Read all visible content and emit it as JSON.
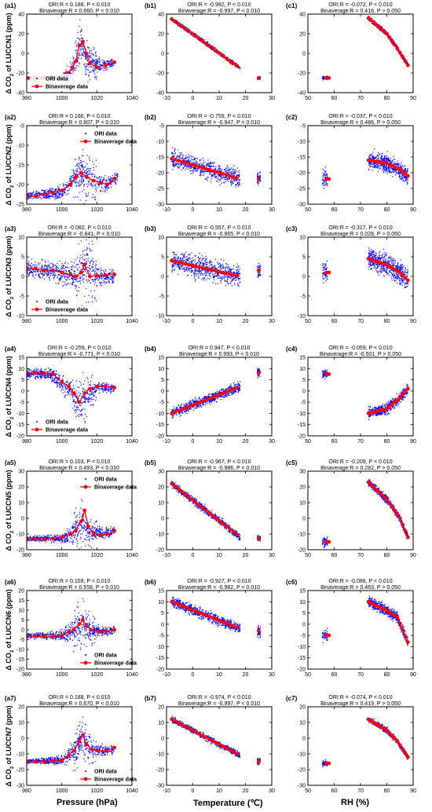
{
  "figure": {
    "x_titles": [
      "Pressure (hPa)",
      "Temperature (℃)",
      "RH (%)"
    ],
    "legend_labels": [
      "ORI data",
      "Binaverage data"
    ],
    "y_title_prefix": "Δ CO",
    "y_title_suffix": " of ",
    "y_title_unit": " (ppm)",
    "colors": {
      "ori": "#0000ff",
      "bin": "#ff0000"
    }
  },
  "chart_data": [
    {
      "type": "scatter",
      "id": "a1",
      "panel_label": "(a1)",
      "row_label": "LUCCN1",
      "stat_ori": "ORI:R = 0.188, P < 0.010",
      "stat_bin": "Binaverage:R = 0.660, P < 0.010",
      "xlim": [
        980,
        1040
      ],
      "ylim": [
        -40,
        40
      ],
      "xticks": [
        980,
        1000,
        1020,
        1040
      ],
      "yticks": [
        -40,
        -20,
        0,
        20,
        40
      ],
      "legend": "bottom-left"
    },
    {
      "type": "scatter",
      "id": "b1",
      "panel_label": "(b1)",
      "row_label": "LUCCN1",
      "stat_ori": "ORI:R = -0.992, P < 0.010",
      "stat_bin": "Binaverage:R = -0.997, P < 0.010",
      "xlim": [
        -10,
        30
      ],
      "ylim": [
        -40,
        40
      ],
      "xticks": [
        -10,
        0,
        10,
        20,
        30
      ],
      "yticks": [
        -40,
        -20,
        0,
        20,
        40
      ]
    },
    {
      "type": "scatter",
      "id": "c1",
      "panel_label": "(c1)",
      "row_label": "LUCCN1",
      "stat_ori": "ORI:R = -0.072, P < 0.010",
      "stat_bin": "Binaverage:R = 0.416, P > 0.050",
      "xlim": [
        50,
        90
      ],
      "ylim": [
        -40,
        40
      ],
      "xticks": [
        50,
        60,
        70,
        80,
        90
      ],
      "yticks": [
        -40,
        -20,
        0,
        20,
        40
      ]
    },
    {
      "type": "scatter",
      "id": "a2",
      "panel_label": "(a2)",
      "row_label": "LUCCN2",
      "stat_ori": "ORI:R = 0.166, P < 0.010",
      "stat_bin": "Binaverage:R = 0.807, P < 0.010",
      "xlim": [
        980,
        1040
      ],
      "ylim": [
        -25,
        -5
      ],
      "xticks": [
        980,
        1000,
        1020,
        1040
      ],
      "yticks": [
        -25,
        -20,
        -15,
        -10,
        -5
      ],
      "legend": "top-right"
    },
    {
      "type": "scatter",
      "id": "b2",
      "panel_label": "(b2)",
      "row_label": "LUCCN2",
      "stat_ori": "ORI:R = -0.759, P < 0.010",
      "stat_bin": "Binaverage:R = -0.947, P < 0.010",
      "xlim": [
        -10,
        30
      ],
      "ylim": [
        -30,
        -5
      ],
      "xticks": [
        -10,
        0,
        10,
        20,
        30
      ],
      "yticks": [
        -30,
        -25,
        -20,
        -15,
        -10,
        -5
      ]
    },
    {
      "type": "scatter",
      "id": "c2",
      "panel_label": "(c2)",
      "row_label": "LUCCN2",
      "stat_ori": "ORI:R = -0.037, P < 0.010",
      "stat_bin": "Binaverage:R = 0.486, P > 0.050",
      "xlim": [
        50,
        90
      ],
      "ylim": [
        -30,
        -5
      ],
      "xticks": [
        50,
        60,
        70,
        80,
        90
      ],
      "yticks": [
        -30,
        -25,
        -20,
        -15,
        -10,
        -5
      ]
    },
    {
      "type": "scatter",
      "id": "a3",
      "panel_label": "(a3)",
      "row_label": "LUCCN3",
      "stat_ori": "ORI:R = -0.082, P < 0.010",
      "stat_bin": "Binaverage:R = -0.841, P < 0.010",
      "xlim": [
        980,
        1040
      ],
      "ylim": [
        -10,
        10
      ],
      "xticks": [
        980,
        1000,
        1020,
        1040
      ],
      "yticks": [
        -10,
        -5,
        0,
        5,
        10
      ],
      "legend": "bottom-left"
    },
    {
      "type": "scatter",
      "id": "b3",
      "panel_label": "(b3)",
      "row_label": "LUCCN3",
      "stat_ori": "ORI:R = -0.557, P < 0.010",
      "stat_bin": "Binaverage:R = -0.865, P < 0.010",
      "xlim": [
        -10,
        30
      ],
      "ylim": [
        -10,
        10
      ],
      "xticks": [
        -10,
        0,
        10,
        20,
        30
      ],
      "yticks": [
        -10,
        -5,
        0,
        5,
        10
      ]
    },
    {
      "type": "scatter",
      "id": "c3",
      "panel_label": "(c3)",
      "row_label": "LUCCN3",
      "stat_ori": "ORI:R = -0.317, P < 0.010",
      "stat_bin": "Binaverage:R = 0.028, P > 0.050",
      "xlim": [
        50,
        90
      ],
      "ylim": [
        -10,
        10
      ],
      "xticks": [
        50,
        60,
        70,
        80,
        90
      ],
      "yticks": [
        -10,
        -5,
        0,
        5,
        10
      ]
    },
    {
      "type": "scatter",
      "id": "a4",
      "panel_label": "(a4)",
      "row_label": "LUCCN4",
      "stat_ori": "ORI:R = -0.259, P < 0.010",
      "stat_bin": "Binaverage:R = -0.771, P < 0.010",
      "xlim": [
        980,
        1040
      ],
      "ylim": [
        -20,
        15
      ],
      "xticks": [
        980,
        1000,
        1020,
        1040
      ],
      "yticks": [
        -20,
        -15,
        -10,
        -5,
        0,
        5,
        10,
        15
      ],
      "legend": "bottom-left"
    },
    {
      "type": "scatter",
      "id": "b4",
      "panel_label": "(b4)",
      "row_label": "LUCCN4",
      "stat_ori": "ORI:R = 0.947, P < 0.010",
      "stat_bin": "Binaverage:R = 0.993, P < 0.010",
      "xlim": [
        -10,
        30
      ],
      "ylim": [
        -20,
        15
      ],
      "xticks": [
        -10,
        0,
        10,
        20,
        30
      ],
      "yticks": [
        -20,
        -15,
        -10,
        -5,
        0,
        5,
        10,
        15
      ]
    },
    {
      "type": "scatter",
      "id": "c4",
      "panel_label": "(c4)",
      "row_label": "LUCCN4",
      "stat_ori": "ORI:R = -0.059, P < 0.010",
      "stat_bin": "Binaverage:R = -0.501, P > 0.050",
      "xlim": [
        50,
        90
      ],
      "ylim": [
        -20,
        15
      ],
      "xticks": [
        50,
        60,
        70,
        80,
        90
      ],
      "yticks": [
        -20,
        -15,
        -10,
        -5,
        0,
        5,
        10,
        15
      ]
    },
    {
      "type": "scatter",
      "id": "a5",
      "panel_label": "(a5)",
      "row_label": "LUCCN5",
      "stat_ori": "ORI:R = 0.103, P < 0.010",
      "stat_bin": "Binaverage:R = 0.493, P < 0.010",
      "xlim": [
        980,
        1040
      ],
      "ylim": [
        -20,
        30
      ],
      "xticks": [
        980,
        1000,
        1020,
        1040
      ],
      "yticks": [
        -20,
        -10,
        0,
        10,
        20,
        30
      ],
      "legend": "top-right"
    },
    {
      "type": "scatter",
      "id": "b5",
      "panel_label": "(b5)",
      "row_label": "LUCCN5",
      "stat_ori": "ORI:R = -0.967, P < 0.010",
      "stat_bin": "Binaverage:R = -0.986, P < 0.010",
      "xlim": [
        -10,
        30
      ],
      "ylim": [
        -20,
        30
      ],
      "xticks": [
        -10,
        0,
        10,
        20,
        30
      ],
      "yticks": [
        -20,
        -10,
        0,
        10,
        20,
        30
      ]
    },
    {
      "type": "scatter",
      "id": "c5",
      "panel_label": "(c5)",
      "row_label": "LUCCN5",
      "stat_ori": "ORI:R = -0.209, P < 0.010",
      "stat_bin": "Binaverage:R = 0.282, P > 0.050",
      "xlim": [
        50,
        90
      ],
      "ylim": [
        -20,
        30
      ],
      "xticks": [
        50,
        60,
        70,
        80,
        90
      ],
      "yticks": [
        -20,
        -10,
        0,
        10,
        20,
        30
      ]
    },
    {
      "type": "scatter",
      "id": "a6",
      "panel_label": "(a6)",
      "row_label": "LUCCN6",
      "stat_ori": "ORI:R = 0.159, P < 0.010",
      "stat_bin": "Binaverage:R = 0.558, P < 0.010",
      "xlim": [
        980,
        1040
      ],
      "ylim": [
        -20,
        20
      ],
      "xticks": [
        980,
        1000,
        1020,
        1040
      ],
      "yticks": [
        -20,
        -15,
        -10,
        -5,
        0,
        5,
        10,
        15,
        20
      ],
      "legend": "bottom-right"
    },
    {
      "type": "scatter",
      "id": "b6",
      "panel_label": "(b6)",
      "row_label": "LUCCN6",
      "stat_ori": "ORI:R = -0.927, P < 0.010",
      "stat_bin": "Binaverage:R = -0.982, P < 0.010",
      "xlim": [
        -10,
        30
      ],
      "ylim": [
        -20,
        15
      ],
      "xticks": [
        -10,
        0,
        10,
        20,
        30
      ],
      "yticks": [
        -20,
        -15,
        -10,
        -5,
        0,
        5,
        10,
        15
      ]
    },
    {
      "type": "scatter",
      "id": "c6",
      "panel_label": "(c6)",
      "row_label": "LUCCN6",
      "stat_ori": "ORI:R = -0.088, P < 0.010",
      "stat_bin": "Binaverage:R = 0.463, P > 0.050",
      "xlim": [
        50,
        90
      ],
      "ylim": [
        -20,
        15
      ],
      "xticks": [
        50,
        60,
        70,
        80,
        90
      ],
      "yticks": [
        -20,
        -15,
        -10,
        -5,
        0,
        5,
        10,
        15
      ]
    },
    {
      "type": "scatter",
      "id": "a7",
      "panel_label": "(a7)",
      "row_label": "LUCCN7",
      "stat_ori": "ORI:R = 0.188, P < 0.010",
      "stat_bin": "Binaverage:R = 0.670, P < 0.010",
      "xlim": [
        980,
        1040
      ],
      "ylim": [
        -30,
        20
      ],
      "xticks": [
        980,
        1000,
        1020,
        1040
      ],
      "yticks": [
        -30,
        -20,
        -10,
        0,
        10,
        20
      ],
      "legend": "bottom-right"
    },
    {
      "type": "scatter",
      "id": "b7",
      "panel_label": "(b7)",
      "row_label": "LUCCN7",
      "stat_ori": "ORI:R = -0.974, P < 0.010",
      "stat_bin": "Binaverage:R = -0.997, P < 0.010",
      "xlim": [
        -10,
        30
      ],
      "ylim": [
        -30,
        20
      ],
      "xticks": [
        -10,
        0,
        10,
        20,
        30
      ],
      "yticks": [
        -30,
        -20,
        -10,
        0,
        10,
        20
      ]
    },
    {
      "type": "scatter",
      "id": "c7",
      "panel_label": "(c7)",
      "row_label": "LUCCN7",
      "stat_ori": "ORI:R = -0.074, P < 0.010",
      "stat_bin": "Binaverage:R = 0.419, P > 0.050",
      "xlim": [
        50,
        90
      ],
      "ylim": [
        -30,
        20
      ],
      "xticks": [
        50,
        60,
        70,
        80,
        90
      ],
      "yticks": [
        -30,
        -20,
        -10,
        0,
        10,
        20
      ]
    }
  ]
}
